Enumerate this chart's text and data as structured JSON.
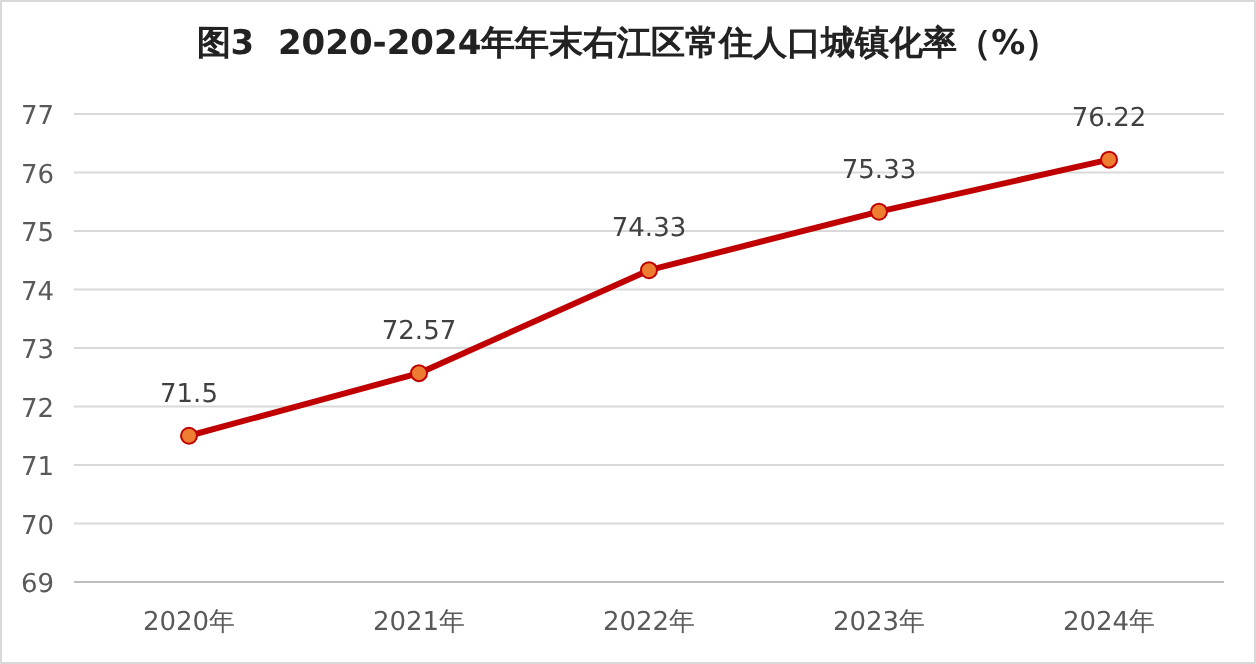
{
  "chart_data": {
    "type": "line",
    "title": "图3  2020-2024年年末右江区常住人口城镇化率（%）",
    "categories": [
      "2020年",
      "2021年",
      "2022年",
      "2023年",
      "2024年"
    ],
    "series": [
      {
        "color": "#c00000",
        "values": [
          71.5,
          72.57,
          74.33,
          75.33,
          76.22
        ]
      }
    ],
    "ylim": [
      69,
      77
    ],
    "yticks": [
      69,
      70,
      71,
      72,
      73,
      74,
      75,
      76,
      77
    ],
    "grid": "y",
    "marker": "circle",
    "line_style": "solid",
    "data_labels": true
  }
}
